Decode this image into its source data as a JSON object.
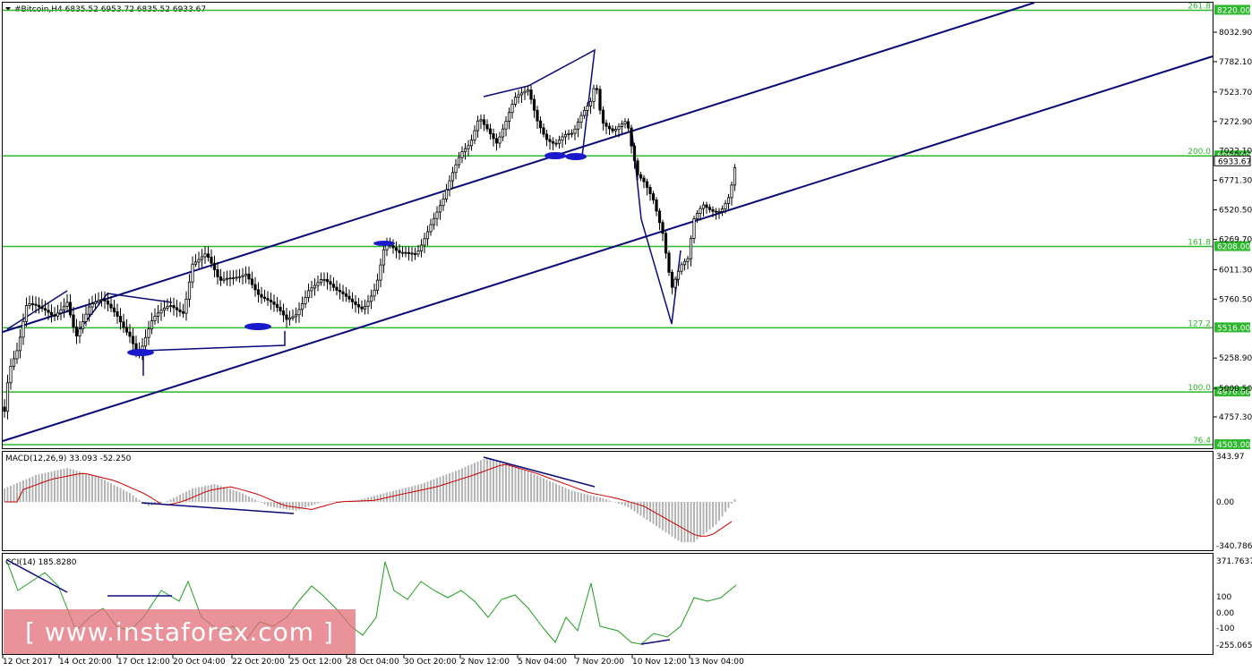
{
  "header": {
    "symbol_line": "#Bitcoin,H4  6835.52 6953.72 6835.52 6933.67"
  },
  "price_axis": {
    "ticks": [
      "8032.90",
      "7782.10",
      "7523.70",
      "7272.90",
      "6771.30",
      "6520.50",
      "6269.70",
      "6011.30",
      "5760.50",
      "5258.90",
      "5000.50",
      "4757.30"
    ],
    "overlapped_tick": "7022.10",
    "current_price": "6933.67",
    "current_price_color": "#000000"
  },
  "fib_levels": [
    {
      "pct": "261.8",
      "price": "8220.00"
    },
    {
      "pct": "200.0",
      "price": "6980.00"
    },
    {
      "pct": "161.8",
      "price": "6208.00"
    },
    {
      "pct": "127.2",
      "price": "5516.00"
    },
    {
      "pct": "100.0",
      "price": "4970.00"
    },
    {
      "pct": "76.4",
      "price": "4503.00"
    }
  ],
  "macd": {
    "label": "MACD(12,26,9) 33.093 -52.250",
    "ticks": [
      "343.97",
      "0.00",
      "-340.786"
    ]
  },
  "cci": {
    "label": "CCI(14) 185.8280",
    "ticks": [
      "371.7637",
      "100",
      "0.00",
      "-100",
      "-255.0655"
    ]
  },
  "time_axis": {
    "labels": [
      "12 Oct 2017",
      "14 Oct 20:00",
      "17 Oct 12:00",
      "20 Oct 04:00",
      "22 Oct 20:00",
      "25 Oct 12:00",
      "28 Oct 04:00",
      "30 Oct 20:00",
      "2 Nov 12:00",
      "5 Nov 04:00",
      "7 Nov 20:00",
      "10 Nov 12:00",
      "13 Nov 04:00"
    ]
  },
  "watermark": {
    "text": "[ www.instaforex.com ]"
  },
  "colors": {
    "fib_green": "#2db82d",
    "trend_navy": "#0a0a7a",
    "candle": "#000000",
    "marker_blue": "#1a1acc",
    "macd_hist": "#b4b4b4",
    "macd_signal": "#cc0000",
    "cci_line": "#1e9e1e"
  },
  "icons": {
    "menu": "triangle-down-icon"
  }
}
